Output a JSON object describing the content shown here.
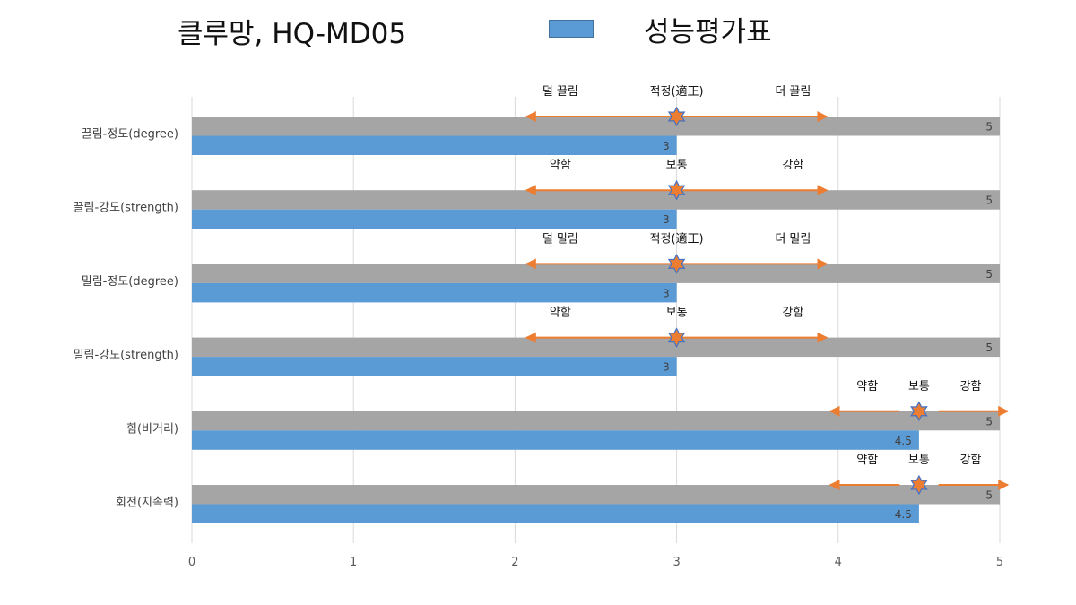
{
  "header": {
    "title": "클루망, HQ-MD05",
    "legend_label": "성능평가표"
  },
  "colors": {
    "series_bar": "#5b9bd5",
    "max_bar": "#a5a5a5",
    "arrow": "#ed7d31",
    "marker": "#ed7d31",
    "marker_outline": "#4472c4"
  },
  "chart_data": {
    "type": "bar",
    "orientation": "horizontal",
    "categories": [
      "끌림-정도(degree)",
      "끌림-강도(strength)",
      "밀림-정도(degree)",
      "밀림-강도(strength)",
      "힘(비거리)",
      "회전(지속력)"
    ],
    "series": [
      {
        "values": [
          5,
          5,
          5,
          5,
          5,
          5
        ],
        "color": "#a5a5a5"
      },
      {
        "name": "성능평가표",
        "values": [
          3,
          3,
          3,
          3,
          4.5,
          4.5
        ],
        "color": "#5b9bd5"
      }
    ],
    "xlim": [
      0,
      5
    ],
    "xticks": [
      "0",
      "1",
      "2",
      "3",
      "4",
      "5"
    ],
    "grid": "vertical",
    "legend": "top",
    "annotations": [
      {
        "left": "덜 끌림",
        "center": "적정(適正)",
        "right": "더 끌림",
        "marker": 3
      },
      {
        "left": "약함",
        "center": "보통",
        "right": "강함",
        "marker": 3
      },
      {
        "left": "덜 밀림",
        "center": "적정(適正)",
        "right": "더 밀림",
        "marker": 3
      },
      {
        "left": "약함",
        "center": "보통",
        "right": "강함",
        "marker": 3
      },
      {
        "left": "약함",
        "center": "보통",
        "right": "강함",
        "marker": 4.5
      },
      {
        "left": "약함",
        "center": "보통",
        "right": "강함",
        "marker": 4.5
      }
    ]
  }
}
